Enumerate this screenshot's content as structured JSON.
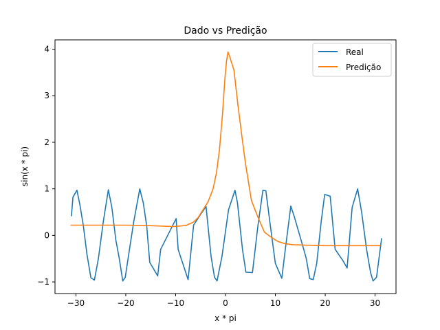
{
  "chart_data": {
    "type": "line",
    "title": "Dado vs Predição",
    "xlabel": "x * pi",
    "ylabel": "sin(x * pi)",
    "xlim": [
      -34.2,
      34.2
    ],
    "ylim": [
      -1.25,
      4.2
    ],
    "xticks": [
      -30,
      -20,
      -10,
      0,
      10,
      20,
      30
    ],
    "yticks": [
      -1,
      0,
      1,
      2,
      3,
      4
    ],
    "grid": false,
    "legend_position": "top-right",
    "series": [
      {
        "name": "Real",
        "color": "#1f77b4",
        "points": [
          [
            -30.9,
            0.42
          ],
          [
            -30.6,
            0.82
          ],
          [
            -29.8,
            0.97
          ],
          [
            -29.2,
            0.65
          ],
          [
            -28.5,
            0.2
          ],
          [
            -27.8,
            -0.4
          ],
          [
            -27.0,
            -0.91
          ],
          [
            -26.3,
            -0.96
          ],
          [
            -25.5,
            -0.5
          ],
          [
            -24.5,
            0.3
          ],
          [
            -23.5,
            0.98
          ],
          [
            -22.8,
            0.6
          ],
          [
            -22.0,
            -0.1
          ],
          [
            -21.3,
            -0.5
          ],
          [
            -20.6,
            -0.98
          ],
          [
            -20.1,
            -0.9
          ],
          [
            -19.4,
            -0.4
          ],
          [
            -18.4,
            0.3
          ],
          [
            -17.2,
            1.0
          ],
          [
            -16.5,
            0.7
          ],
          [
            -15.8,
            0.2
          ],
          [
            -15.2,
            -0.58
          ],
          [
            -13.6,
            -0.87
          ],
          [
            -13.0,
            -0.3
          ],
          [
            -9.9,
            0.36
          ],
          [
            -9.5,
            -0.3
          ],
          [
            -7.5,
            -0.95
          ],
          [
            -6.4,
            0.22
          ],
          [
            -5.0,
            0.45
          ],
          [
            -3.9,
            0.62
          ],
          [
            -2.9,
            -0.45
          ],
          [
            -2.2,
            -0.9
          ],
          [
            -1.7,
            -0.98
          ],
          [
            -0.7,
            -0.45
          ],
          [
            0.6,
            0.55
          ],
          [
            1.9,
            0.97
          ],
          [
            2.4,
            0.7
          ],
          [
            3.4,
            -0.3
          ],
          [
            4.1,
            -0.79
          ],
          [
            5.4,
            -0.8
          ],
          [
            6.5,
            0.2
          ],
          [
            7.5,
            0.97
          ],
          [
            8.1,
            0.96
          ],
          [
            9.0,
            0.2
          ],
          [
            10.0,
            -0.6
          ],
          [
            11.3,
            -0.92
          ],
          [
            12.0,
            -0.3
          ],
          [
            13.1,
            0.63
          ],
          [
            13.8,
            0.4
          ],
          [
            15.7,
            -0.3
          ],
          [
            16.2,
            -0.5
          ],
          [
            16.9,
            -0.93
          ],
          [
            17.6,
            -0.95
          ],
          [
            18.3,
            -0.6
          ],
          [
            19.2,
            0.3
          ],
          [
            19.9,
            0.88
          ],
          [
            21.0,
            0.84
          ],
          [
            22.0,
            -0.3
          ],
          [
            23.6,
            -0.55
          ],
          [
            24.4,
            -0.7
          ],
          [
            25.4,
            0.6
          ],
          [
            26.5,
            1.0
          ],
          [
            27.3,
            0.5
          ],
          [
            28.3,
            -0.3
          ],
          [
            29.1,
            -0.8
          ],
          [
            29.6,
            -0.98
          ],
          [
            30.3,
            -0.9
          ],
          [
            30.9,
            -0.4
          ],
          [
            31.3,
            -0.07
          ]
        ]
      },
      {
        "name": "Predição",
        "color": "#ff7f0e",
        "points": [
          [
            -31.0,
            0.22
          ],
          [
            -25.0,
            0.22
          ],
          [
            -20.0,
            0.22
          ],
          [
            -16.0,
            0.21
          ],
          [
            -13.0,
            0.2
          ],
          [
            -10.5,
            0.19
          ],
          [
            -8.0,
            0.21
          ],
          [
            -6.5,
            0.28
          ],
          [
            -5.5,
            0.38
          ],
          [
            -4.5,
            0.55
          ],
          [
            -3.5,
            0.72
          ],
          [
            -2.5,
            1.0
          ],
          [
            -1.8,
            1.35
          ],
          [
            -1.2,
            1.85
          ],
          [
            -0.6,
            2.6
          ],
          [
            -0.1,
            3.4
          ],
          [
            0.2,
            3.75
          ],
          [
            0.5,
            3.94
          ],
          [
            0.9,
            3.82
          ],
          [
            1.7,
            3.55
          ],
          [
            2.5,
            2.8
          ],
          [
            3.2,
            2.2
          ],
          [
            4.0,
            1.55
          ],
          [
            5.2,
            0.75
          ],
          [
            6.4,
            0.42
          ],
          [
            7.8,
            0.07
          ],
          [
            9.0,
            -0.03
          ],
          [
            10.5,
            -0.13
          ],
          [
            12.0,
            -0.18
          ],
          [
            13.5,
            -0.2
          ],
          [
            16.0,
            -0.21
          ],
          [
            20.0,
            -0.22
          ],
          [
            25.0,
            -0.22
          ],
          [
            31.0,
            -0.22
          ]
        ]
      }
    ]
  }
}
